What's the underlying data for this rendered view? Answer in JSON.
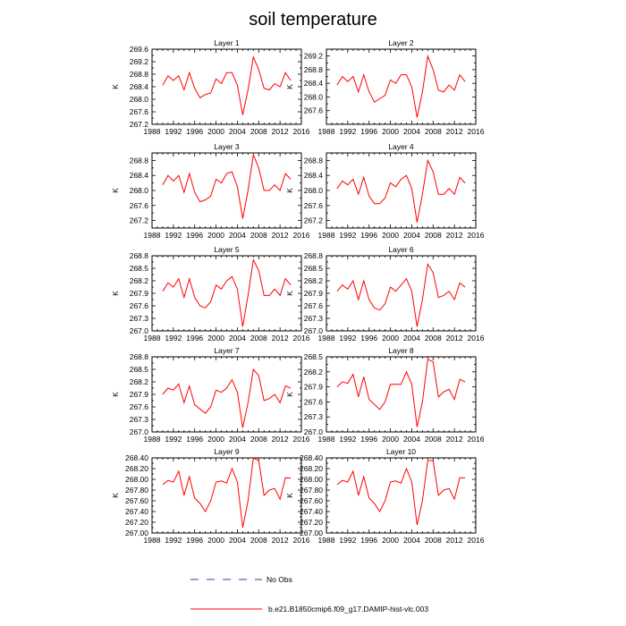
{
  "figure": {
    "title": "soil temperature"
  },
  "legend": {
    "obs_label": "No Obs",
    "model_label": "b.e21.B1850cmip6.f09_g17.DAMIP-hist-vlc.003",
    "obs_color": "#3a3a8a",
    "model_color": "#ff0000"
  },
  "chart_data": [
    {
      "type": "line",
      "title": "Layer 1",
      "ylabel": "K",
      "xlim": [
        1988,
        2016
      ],
      "ylim": [
        267.2,
        269.6
      ],
      "x_ticks": [
        "1988",
        "1992",
        "1996",
        "2000",
        "2004",
        "2008",
        "2012",
        "2016"
      ],
      "y_ticks": [
        "267.2",
        "267.6",
        "268.0",
        "268.4",
        "268.8",
        "269.2",
        "269.6"
      ],
      "x": [
        1990,
        1991,
        1992,
        1993,
        1994,
        1995,
        1996,
        1997,
        1998,
        1999,
        2000,
        2001,
        2002,
        2003,
        2004,
        2005,
        2006,
        2007,
        2008,
        2009,
        2010,
        2011,
        2012,
        2013,
        2014
      ],
      "series": [
        {
          "name": "b.e21.B1850cmip6.f09_g17.DAMIP-hist-vlc.003",
          "values": [
            268.45,
            268.75,
            268.6,
            268.75,
            268.3,
            268.85,
            268.35,
            268.05,
            268.15,
            268.2,
            268.65,
            268.5,
            268.85,
            268.85,
            268.45,
            267.5,
            268.3,
            269.35,
            268.95,
            268.35,
            268.3,
            268.5,
            268.4,
            268.85,
            268.6
          ]
        }
      ]
    },
    {
      "type": "line",
      "title": "Layer 2",
      "ylabel": "K",
      "xlim": [
        1988,
        2016
      ],
      "ylim": [
        267.2,
        269.4
      ],
      "x_ticks": [
        "1988",
        "1992",
        "1996",
        "2000",
        "2004",
        "2008",
        "2012",
        "2016"
      ],
      "y_ticks": [
        "267.6",
        "268.0",
        "268.4",
        "268.8",
        "269.2"
      ],
      "x": [
        1990,
        1991,
        1992,
        1993,
        1994,
        1995,
        1996,
        1997,
        1998,
        1999,
        2000,
        2001,
        2002,
        2003,
        2004,
        2005,
        2006,
        2007,
        2008,
        2009,
        2010,
        2011,
        2012,
        2013,
        2014
      ],
      "series": [
        {
          "name": "b.e21.B1850cmip6.f09_g17.DAMIP-hist-vlc.003",
          "values": [
            268.35,
            268.6,
            268.45,
            268.6,
            268.15,
            268.65,
            268.15,
            267.85,
            267.95,
            268.05,
            268.5,
            268.4,
            268.65,
            268.65,
            268.3,
            267.4,
            268.15,
            269.2,
            268.8,
            268.2,
            268.15,
            268.35,
            268.2,
            268.65,
            268.45
          ]
        }
      ]
    },
    {
      "type": "line",
      "title": "Layer 3",
      "ylabel": "K",
      "xlim": [
        1988,
        2016
      ],
      "ylim": [
        267.0,
        269.0
      ],
      "x_ticks": [
        "1988",
        "1992",
        "1996",
        "2000",
        "2004",
        "2008",
        "2012",
        "2016"
      ],
      "y_ticks": [
        "267.2",
        "267.6",
        "268.0",
        "268.4",
        "268.8"
      ],
      "x": [
        1990,
        1991,
        1992,
        1993,
        1994,
        1995,
        1996,
        1997,
        1998,
        1999,
        2000,
        2001,
        2002,
        2003,
        2004,
        2005,
        2006,
        2007,
        2008,
        2009,
        2010,
        2011,
        2012,
        2013,
        2014
      ],
      "series": [
        {
          "name": "b.e21.B1850cmip6.f09_g17.DAMIP-hist-vlc.003",
          "values": [
            268.15,
            268.4,
            268.25,
            268.4,
            267.95,
            268.45,
            267.95,
            267.7,
            267.75,
            267.85,
            268.3,
            268.2,
            268.45,
            268.5,
            268.1,
            267.25,
            268.0,
            268.95,
            268.6,
            268.0,
            268.0,
            268.15,
            268.0,
            268.45,
            268.3
          ]
        }
      ]
    },
    {
      "type": "line",
      "title": "Layer 4",
      "ylabel": "K",
      "xlim": [
        1988,
        2016
      ],
      "ylim": [
        267.0,
        269.0
      ],
      "x_ticks": [
        "1988",
        "1992",
        "1996",
        "2000",
        "2004",
        "2008",
        "2012",
        "2016"
      ],
      "y_ticks": [
        "267.2",
        "267.6",
        "268.0",
        "268.4",
        "268.8"
      ],
      "x": [
        1990,
        1991,
        1992,
        1993,
        1994,
        1995,
        1996,
        1997,
        1998,
        1999,
        2000,
        2001,
        2002,
        2003,
        2004,
        2005,
        2006,
        2007,
        2008,
        2009,
        2010,
        2011,
        2012,
        2013,
        2014
      ],
      "series": [
        {
          "name": "b.e21.B1850cmip6.f09_g17.DAMIP-hist-vlc.003",
          "values": [
            268.05,
            268.25,
            268.15,
            268.3,
            267.9,
            268.35,
            267.85,
            267.65,
            267.65,
            267.8,
            268.2,
            268.1,
            268.3,
            268.4,
            268.05,
            267.15,
            267.9,
            268.8,
            268.5,
            267.9,
            267.9,
            268.05,
            267.9,
            268.35,
            268.2
          ]
        }
      ]
    },
    {
      "type": "line",
      "title": "Layer 5",
      "ylabel": "K",
      "xlim": [
        1988,
        2016
      ],
      "ylim": [
        267.0,
        268.8
      ],
      "x_ticks": [
        "1988",
        "1992",
        "1996",
        "2000",
        "2004",
        "2008",
        "2012",
        "2016"
      ],
      "y_ticks": [
        "267.0",
        "267.3",
        "267.6",
        "267.9",
        "268.2",
        "268.5",
        "268.8"
      ],
      "x": [
        1990,
        1991,
        1992,
        1993,
        1994,
        1995,
        1996,
        1997,
        1998,
        1999,
        2000,
        2001,
        2002,
        2003,
        2004,
        2005,
        2006,
        2007,
        2008,
        2009,
        2010,
        2011,
        2012,
        2013,
        2014
      ],
      "series": [
        {
          "name": "b.e21.B1850cmip6.f09_g17.DAMIP-hist-vlc.003",
          "values": [
            267.95,
            268.15,
            268.05,
            268.25,
            267.8,
            268.25,
            267.8,
            267.6,
            267.55,
            267.7,
            268.1,
            268.0,
            268.2,
            268.3,
            268.0,
            267.1,
            267.85,
            268.7,
            268.45,
            267.85,
            267.85,
            268.0,
            267.85,
            268.25,
            268.1
          ]
        }
      ]
    },
    {
      "type": "line",
      "title": "Layer 6",
      "ylabel": "K",
      "xlim": [
        1988,
        2016
      ],
      "ylim": [
        267.0,
        268.8
      ],
      "x_ticks": [
        "1988",
        "1992",
        "1996",
        "2000",
        "2004",
        "2008",
        "2012",
        "2016"
      ],
      "y_ticks": [
        "267.0",
        "267.3",
        "267.6",
        "267.9",
        "268.2",
        "268.5",
        "268.8"
      ],
      "x": [
        1990,
        1991,
        1992,
        1993,
        1994,
        1995,
        1996,
        1997,
        1998,
        1999,
        2000,
        2001,
        2002,
        2003,
        2004,
        2005,
        2006,
        2007,
        2008,
        2009,
        2010,
        2011,
        2012,
        2013,
        2014
      ],
      "series": [
        {
          "name": "b.e21.B1850cmip6.f09_g17.DAMIP-hist-vlc.003",
          "values": [
            267.95,
            268.1,
            268.0,
            268.2,
            267.75,
            268.2,
            267.75,
            267.55,
            267.5,
            267.65,
            268.05,
            267.95,
            268.1,
            268.25,
            267.95,
            267.1,
            267.75,
            268.6,
            268.4,
            267.8,
            267.85,
            267.95,
            267.75,
            268.15,
            268.05
          ]
        }
      ]
    },
    {
      "type": "line",
      "title": "Layer 7",
      "ylabel": "K",
      "xlim": [
        1988,
        2016
      ],
      "ylim": [
        267.0,
        268.8
      ],
      "x_ticks": [
        "1988",
        "1992",
        "1996",
        "2000",
        "2004",
        "2008",
        "2012",
        "2016"
      ],
      "y_ticks": [
        "267.0",
        "267.3",
        "267.6",
        "267.9",
        "268.2",
        "268.5",
        "268.8"
      ],
      "x": [
        1990,
        1991,
        1992,
        1993,
        1994,
        1995,
        1996,
        1997,
        1998,
        1999,
        2000,
        2001,
        2002,
        2003,
        2004,
        2005,
        2006,
        2007,
        2008,
        2009,
        2010,
        2011,
        2012,
        2013,
        2014
      ],
      "series": [
        {
          "name": "b.e21.B1850cmip6.f09_g17.DAMIP-hist-vlc.003",
          "values": [
            267.9,
            268.05,
            268.0,
            268.15,
            267.7,
            268.1,
            267.65,
            267.55,
            267.45,
            267.6,
            268.0,
            267.95,
            268.05,
            268.25,
            267.95,
            267.1,
            267.7,
            268.5,
            268.35,
            267.75,
            267.8,
            267.9,
            267.7,
            268.1,
            268.05
          ]
        }
      ]
    },
    {
      "type": "line",
      "title": "Layer 8",
      "ylabel": "K",
      "xlim": [
        1988,
        2016
      ],
      "ylim": [
        267.0,
        268.5
      ],
      "x_ticks": [
        "1988",
        "1992",
        "1996",
        "2000",
        "2004",
        "2008",
        "2012",
        "2016"
      ],
      "y_ticks": [
        "267.0",
        "267.3",
        "267.6",
        "267.9",
        "268.2",
        "268.5"
      ],
      "x": [
        1990,
        1991,
        1992,
        1993,
        1994,
        1995,
        1996,
        1997,
        1998,
        1999,
        2000,
        2001,
        2002,
        2003,
        2004,
        2005,
        2006,
        2007,
        2008,
        2009,
        2010,
        2011,
        2012,
        2013,
        2014
      ],
      "series": [
        {
          "name": "b.e21.B1850cmip6.f09_g17.DAMIP-hist-vlc.003",
          "values": [
            267.9,
            268.0,
            267.97,
            268.15,
            267.7,
            268.1,
            267.65,
            267.55,
            267.45,
            267.6,
            267.95,
            267.95,
            267.95,
            268.2,
            267.95,
            267.1,
            267.6,
            268.45,
            268.4,
            267.7,
            267.8,
            267.85,
            267.65,
            268.05,
            268.0
          ]
        }
      ]
    },
    {
      "type": "line",
      "title": "Layer 9",
      "ylabel": "K",
      "xlim": [
        1988,
        2016
      ],
      "ylim": [
        267.0,
        268.4
      ],
      "x_ticks": [
        "1988",
        "1992",
        "1996",
        "2000",
        "2004",
        "2008",
        "2012",
        "2016"
      ],
      "y_ticks": [
        "267.00",
        "267.20",
        "267.40",
        "267.60",
        "267.80",
        "268.00",
        "268.20",
        "268.40"
      ],
      "x": [
        1990,
        1991,
        1992,
        1993,
        1994,
        1995,
        1996,
        1997,
        1998,
        1999,
        2000,
        2001,
        2002,
        2003,
        2004,
        2005,
        2006,
        2007,
        2008,
        2009,
        2010,
        2011,
        2012,
        2013,
        2014
      ],
      "series": [
        {
          "name": "b.e21.B1850cmip6.f09_g17.DAMIP-hist-vlc.003",
          "values": [
            267.9,
            267.98,
            267.95,
            268.15,
            267.7,
            268.05,
            267.65,
            267.55,
            267.4,
            267.6,
            267.95,
            267.97,
            267.93,
            268.2,
            267.95,
            267.1,
            267.6,
            268.4,
            268.35,
            267.7,
            267.8,
            267.83,
            267.63,
            268.03,
            268.02
          ]
        }
      ]
    },
    {
      "type": "line",
      "title": "Layer 10",
      "ylabel": "K",
      "xlim": [
        1988,
        2016
      ],
      "ylim": [
        267.0,
        268.4
      ],
      "x_ticks": [
        "1988",
        "1992",
        "1996",
        "2000",
        "2004",
        "2008",
        "2012",
        "2016"
      ],
      "y_ticks": [
        "267.00",
        "267.20",
        "267.40",
        "267.60",
        "267.80",
        "268.00",
        "268.20",
        "268.40"
      ],
      "x": [
        1990,
        1991,
        1992,
        1993,
        1994,
        1995,
        1996,
        1997,
        1998,
        1999,
        2000,
        2001,
        2002,
        2003,
        2004,
        2005,
        2006,
        2007,
        2008,
        2009,
        2010,
        2011,
        2012,
        2013,
        2014
      ],
      "series": [
        {
          "name": "b.e21.B1850cmip6.f09_g17.DAMIP-hist-vlc.003",
          "values": [
            267.9,
            267.98,
            267.95,
            268.15,
            267.7,
            268.05,
            267.65,
            267.55,
            267.4,
            267.6,
            267.95,
            267.97,
            267.93,
            268.2,
            267.95,
            267.15,
            267.6,
            268.35,
            268.35,
            267.7,
            267.8,
            267.83,
            267.63,
            268.03,
            268.03
          ]
        }
      ]
    }
  ]
}
